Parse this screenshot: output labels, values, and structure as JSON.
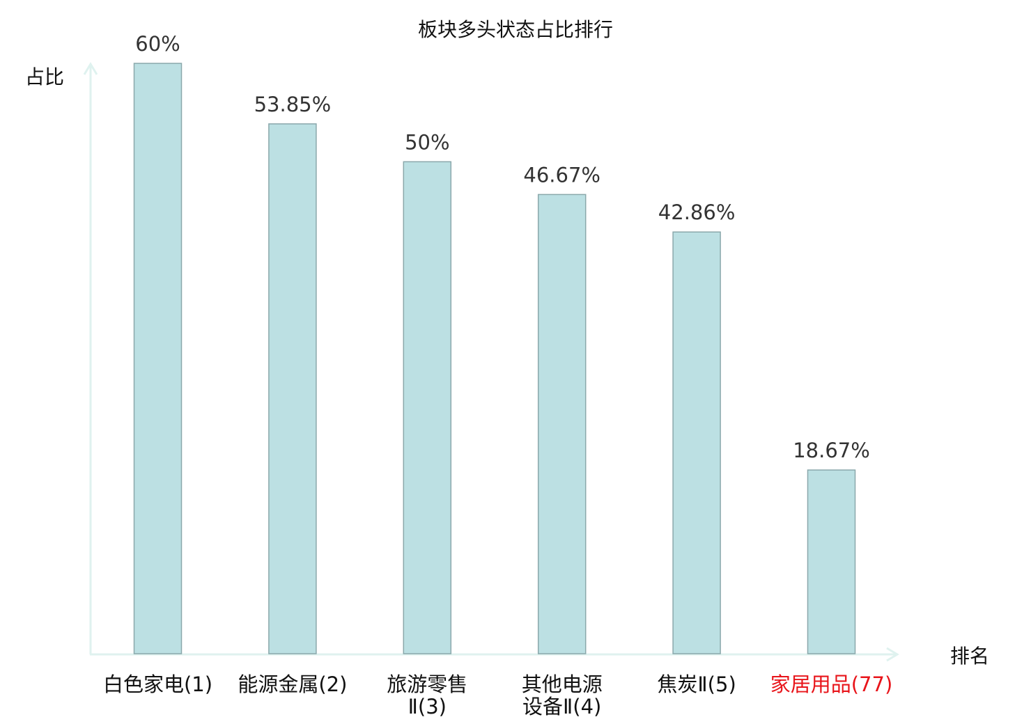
{
  "chart_data": {
    "type": "bar",
    "title": "板块多头状态占比排行",
    "xlabel": "排名",
    "ylabel": "占比",
    "ylim": [
      0,
      60
    ],
    "grid": false,
    "categories": [
      {
        "lines": [
          "白色家电(1)"
        ],
        "highlight": false
      },
      {
        "lines": [
          "能源金属(2)"
        ],
        "highlight": false
      },
      {
        "lines": [
          "旅游零售",
          "Ⅱ(3)"
        ],
        "highlight": false
      },
      {
        "lines": [
          "其他电源",
          "设备Ⅱ(4)"
        ],
        "highlight": false
      },
      {
        "lines": [
          "焦炭Ⅱ(5)"
        ],
        "highlight": false
      },
      {
        "lines": [
          "家居用品(77)"
        ],
        "highlight": true
      }
    ],
    "values": [
      60,
      53.85,
      50,
      46.67,
      42.86,
      18.67
    ],
    "value_labels": [
      "60%",
      "53.85%",
      "50%",
      "46.67%",
      "42.86%",
      "18.67%"
    ]
  },
  "colors": {
    "bar_fill": "#bce0e3",
    "bar_stroke": "#8aa8ab",
    "axis": "#dff2ef",
    "label": "#111111",
    "value_label": "#333333",
    "highlight": "#e8141a"
  }
}
